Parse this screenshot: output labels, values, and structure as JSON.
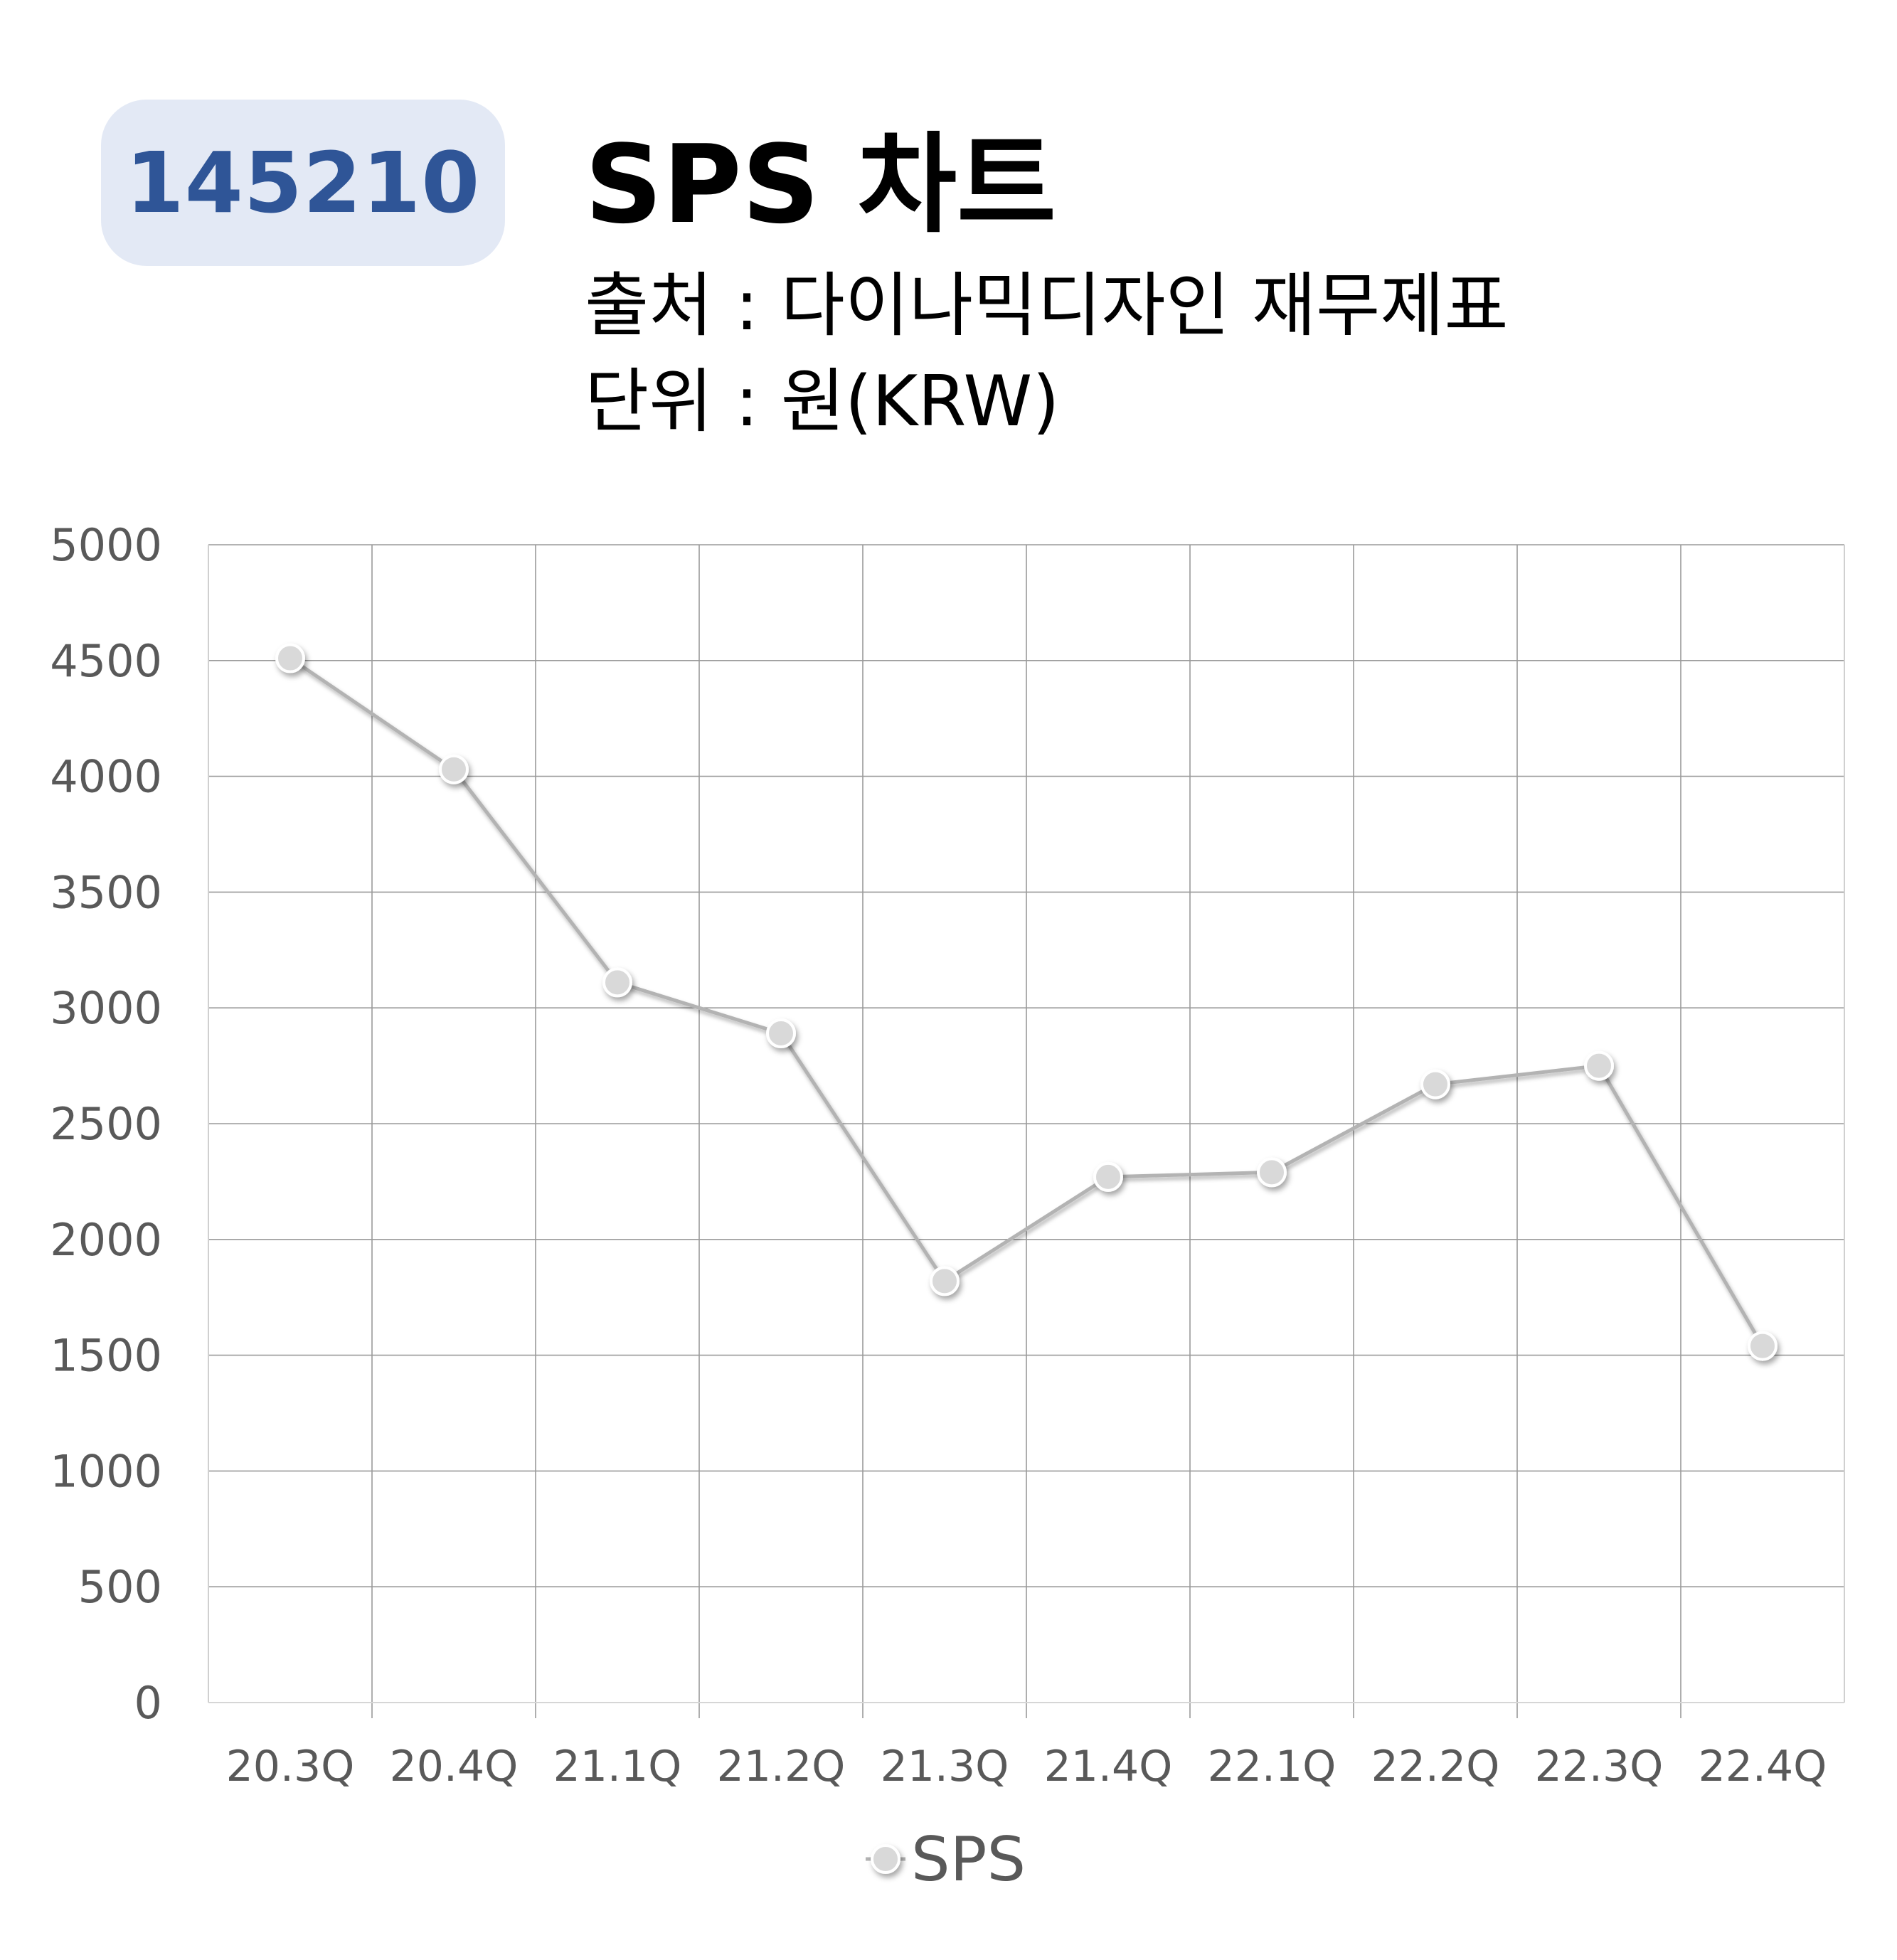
{
  "header": {
    "code": "145210",
    "title": "SPS 차트",
    "source_label": "출처",
    "source_value": "다이나믹디자인 재무제표",
    "unit_label": "단위",
    "unit_value": "원(KRW)",
    "separator": " : "
  },
  "colors": {
    "badge_bg": "#e3e9f5",
    "badge_text": "#2f5597",
    "line": "#b3b3b3",
    "marker": "#d9d9d9",
    "grid": "#9a9a9a",
    "axis_text": "#595959"
  },
  "chart_data": {
    "type": "line",
    "title": "SPS 차트",
    "categories": [
      "20.3Q",
      "20.4Q",
      "21.1Q",
      "21.2Q",
      "21.3Q",
      "21.4Q",
      "22.1Q",
      "22.2Q",
      "22.3Q",
      "22.4Q"
    ],
    "series": [
      {
        "name": "SPS",
        "values": [
          4510,
          4030,
          3110,
          2890,
          1820,
          2270,
          2290,
          2670,
          2750,
          1540
        ]
      }
    ],
    "ylim": [
      0,
      5000
    ],
    "yticks": [
      0,
      500,
      1000,
      1500,
      2000,
      2500,
      3000,
      3500,
      4000,
      4500,
      5000
    ],
    "xlabel": "",
    "ylabel": "",
    "grid": true,
    "legend": "bottom-center"
  }
}
